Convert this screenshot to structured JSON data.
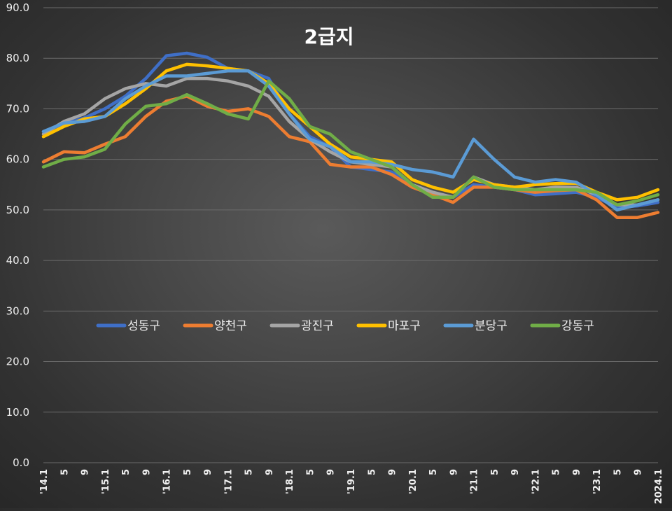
{
  "chart_data": {
    "type": "line",
    "title": "2급지",
    "xlabel": "",
    "ylabel": "",
    "ylim": [
      0,
      90
    ],
    "yticks": [
      "0.0",
      "10.0",
      "20.0",
      "30.0",
      "40.0",
      "50.0",
      "60.0",
      "70.0",
      "80.0",
      "90.0"
    ],
    "grid": true,
    "legend_position": "center",
    "categories": [
      "'14.1",
      "5",
      "9",
      "'15.1",
      "5",
      "9",
      "'16.1",
      "5",
      "9",
      "'17.1",
      "5",
      "9",
      "'18.1",
      "5",
      "9",
      "'19.1",
      "5",
      "9",
      "'20.1",
      "5",
      "9",
      "'21.1",
      "5",
      "9",
      "'22.1",
      "5",
      "9",
      "'23.1",
      "5",
      "9",
      "2024.1"
    ],
    "series": [
      {
        "name": "성동구",
        "color": "#3f6fc7",
        "values": [
          65.5,
          67,
          68.2,
          70,
          72.5,
          76,
          80.5,
          81,
          80.2,
          78,
          77.5,
          76,
          69,
          64.5,
          62.5,
          58.5,
          58,
          57.5,
          55,
          53.5,
          52.5,
          55,
          54.5,
          54,
          53,
          53.2,
          53.5,
          52.5,
          50.5,
          50.8,
          51.5
        ]
      },
      {
        "name": "양천구",
        "color": "#ed7d31",
        "values": [
          59.5,
          61.5,
          61.3,
          63,
          64.5,
          68.5,
          71.5,
          72.5,
          70.5,
          69.5,
          70,
          68.5,
          64.5,
          63.5,
          59,
          58.5,
          58.5,
          57,
          54.5,
          53,
          51.5,
          54.5,
          54.5,
          54,
          53.5,
          53.8,
          54,
          52,
          48.5,
          48.5,
          49.5
        ]
      },
      {
        "name": "광진구",
        "color": "#a5a5a5",
        "values": [
          65,
          67.5,
          69,
          72,
          74,
          75,
          74.5,
          76,
          76,
          75.5,
          74.5,
          72.5,
          67.5,
          64,
          61.5,
          59.5,
          59,
          58.5,
          55,
          53.5,
          52.5,
          56.5,
          55,
          54.5,
          54,
          54.5,
          54.5,
          53,
          51,
          51,
          52
        ]
      },
      {
        "name": "마포구",
        "color": "#ffc000",
        "values": [
          64.5,
          66.5,
          68,
          68.5,
          71,
          74,
          77.5,
          78.8,
          78.5,
          78,
          77.5,
          75,
          70,
          66.5,
          63,
          60.5,
          60,
          59.5,
          56,
          54.5,
          53.5,
          56,
          55,
          54.5,
          55,
          55.2,
          55.3,
          53.5,
          52,
          52.5,
          54
        ]
      },
      {
        "name": "분당구",
        "color": "#5b9bd5",
        "values": [
          65.5,
          67.2,
          67.5,
          68.5,
          72,
          74.5,
          76.5,
          76.5,
          77,
          77.5,
          77.5,
          74.5,
          69,
          64,
          62.5,
          59.5,
          59.5,
          59,
          58,
          57.5,
          56.5,
          64,
          60,
          56.5,
          55.5,
          56,
          55.5,
          53,
          50,
          51,
          52
        ]
      },
      {
        "name": "강동구",
        "color": "#70ad47",
        "values": [
          58.5,
          60,
          60.5,
          62,
          67,
          70.5,
          71,
          72.8,
          71,
          69,
          68,
          75.5,
          72,
          66.5,
          65,
          61.5,
          60,
          58.5,
          55,
          52.5,
          52.5,
          56.5,
          54.5,
          54,
          54,
          54,
          54,
          53.5,
          51,
          51.8,
          53
        ]
      }
    ]
  }
}
